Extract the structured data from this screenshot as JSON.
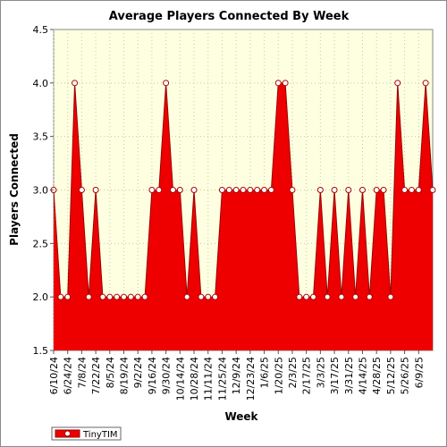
{
  "chart_data": {
    "type": "area",
    "title": "Average Players Connected By Week",
    "xlabel": "Week",
    "ylabel": "Players Connected",
    "ylim": [
      1.5,
      4.5
    ],
    "yticks": [
      "1.5",
      "2.0",
      "2.5",
      "3.0",
      "3.5",
      "4.0",
      "4.5"
    ],
    "grid": true,
    "legend_position": "bottom-left",
    "x_tick_labels": [
      "6/10/24",
      "6/24/24",
      "7/8/24",
      "7/22/24",
      "8/5/24",
      "8/19/24",
      "9/2/24",
      "9/16/24",
      "9/30/24",
      "10/14/24",
      "10/28/24",
      "11/11/24",
      "11/25/24",
      "12/9/24",
      "12/23/24",
      "1/6/25",
      "1/20/25",
      "2/3/25",
      "2/17/25",
      "3/3/25",
      "3/17/25",
      "3/31/25",
      "4/14/25",
      "4/28/25",
      "5/12/25",
      "5/26/25",
      "6/9/25"
    ],
    "series": [
      {
        "name": "TinyTIM",
        "values": [
          3,
          2,
          2,
          4,
          3,
          2,
          3,
          2,
          2,
          2,
          2,
          2,
          2,
          2,
          3,
          3,
          4,
          3,
          3,
          2,
          3,
          2,
          2,
          2,
          3,
          3,
          3,
          3,
          3,
          3,
          3,
          3,
          4,
          4,
          3,
          2,
          2,
          2,
          3,
          2,
          3,
          2,
          3,
          2,
          3,
          2,
          3,
          3,
          2,
          4,
          3,
          3,
          3,
          4,
          3
        ]
      }
    ]
  },
  "colors": {
    "plot_background": "#fefee0",
    "grid": "#c8c8b4",
    "series_fill": "#ee0000",
    "series_stroke": "#990000",
    "marker_fill": "#ffffff",
    "marker_stroke": "#aa0000"
  }
}
